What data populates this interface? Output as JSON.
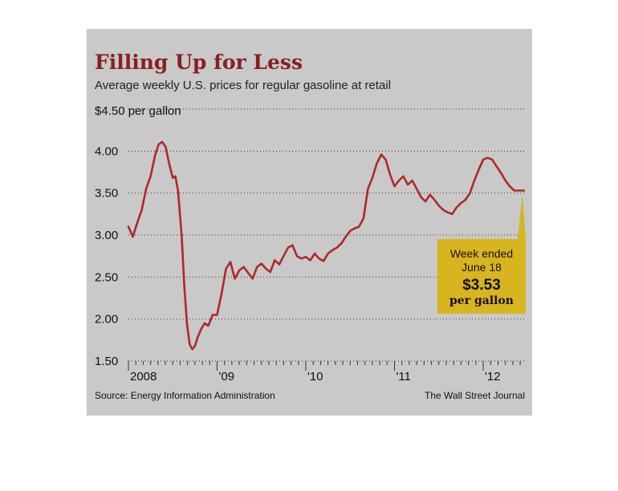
{
  "colors": {
    "background": "#c9c9c9",
    "line": "#b0282a",
    "title": "#8a1f1f",
    "callout": "#d8b41e"
  },
  "chart_data": {
    "type": "line",
    "title": "Filling Up for Less",
    "subtitle": "Average weekly U.S. prices for regular gasoline at retail",
    "ylabel": "$4.50 per gallon",
    "ylim": [
      1.5,
      4.5
    ],
    "y_ticks": [
      "4.00",
      "3.50",
      "3.00",
      "2.50",
      "2.00",
      "1.50"
    ],
    "y_tick_values": [
      4.0,
      3.5,
      3.0,
      2.5,
      2.0,
      1.5
    ],
    "x_ticks": [
      "2008",
      "'09",
      "'10",
      "'11",
      "'12"
    ],
    "x_tick_values": [
      2008,
      2009,
      2010,
      2011,
      2012
    ],
    "xlim": [
      2008.0,
      2012.47
    ],
    "grid": true,
    "series": [
      {
        "x": [
          2008.0,
          2008.05,
          2008.1,
          2008.15,
          2008.2,
          2008.25,
          2008.3,
          2008.34,
          2008.38,
          2008.42,
          2008.46,
          2008.5,
          2008.53,
          2008.56,
          2008.6,
          2008.63,
          2008.66,
          2008.69,
          2008.72,
          2008.75,
          2008.78,
          2008.82,
          2008.86,
          2008.9,
          2008.95,
          2009.0,
          2009.05,
          2009.1,
          2009.15,
          2009.2,
          2009.25,
          2009.3,
          2009.35,
          2009.4,
          2009.45,
          2009.5,
          2009.55,
          2009.6,
          2009.65,
          2009.7,
          2009.75,
          2009.8,
          2009.85,
          2009.9,
          2009.95,
          2010.0,
          2010.05,
          2010.1,
          2010.15,
          2010.2,
          2010.25,
          2010.3,
          2010.35,
          2010.4,
          2010.45,
          2010.5,
          2010.55,
          2010.6,
          2010.65,
          2010.7,
          2010.75,
          2010.8,
          2010.85,
          2010.9,
          2010.95,
          2011.0,
          2011.05,
          2011.1,
          2011.15,
          2011.2,
          2011.25,
          2011.3,
          2011.35,
          2011.4,
          2011.45,
          2011.5,
          2011.55,
          2011.6,
          2011.65,
          2011.7,
          2011.75,
          2011.8,
          2011.85,
          2011.9,
          2011.95,
          2012.0,
          2012.05,
          2012.1,
          2012.15,
          2012.2,
          2012.25,
          2012.3,
          2012.35,
          2012.4,
          2012.46
        ],
        "y": [
          3.1,
          2.98,
          3.15,
          3.3,
          3.55,
          3.7,
          3.95,
          4.08,
          4.11,
          4.05,
          3.85,
          3.68,
          3.7,
          3.52,
          3.0,
          2.4,
          1.95,
          1.7,
          1.64,
          1.68,
          1.78,
          1.88,
          1.95,
          1.92,
          2.05,
          2.05,
          2.3,
          2.6,
          2.68,
          2.48,
          2.58,
          2.62,
          2.55,
          2.48,
          2.62,
          2.66,
          2.6,
          2.56,
          2.7,
          2.65,
          2.75,
          2.85,
          2.88,
          2.75,
          2.72,
          2.74,
          2.7,
          2.78,
          2.72,
          2.69,
          2.78,
          2.82,
          2.85,
          2.9,
          2.98,
          3.05,
          3.08,
          3.1,
          3.2,
          3.55,
          3.68,
          3.85,
          3.96,
          3.9,
          3.72,
          3.58,
          3.65,
          3.7,
          3.6,
          3.65,
          3.55,
          3.45,
          3.4,
          3.48,
          3.42,
          3.35,
          3.3,
          3.27,
          3.25,
          3.33,
          3.38,
          3.42,
          3.5,
          3.65,
          3.78,
          3.9,
          3.92,
          3.9,
          3.82,
          3.74,
          3.65,
          3.58,
          3.53,
          3.53,
          3.53
        ]
      }
    ],
    "callout": {
      "line1": "Week ended",
      "line2": "June 18",
      "value": "$3.53",
      "unit": "per gallon"
    }
  },
  "footer": {
    "source": "Source: Energy Information Administration",
    "publisher": "The Wall Street Journal"
  }
}
